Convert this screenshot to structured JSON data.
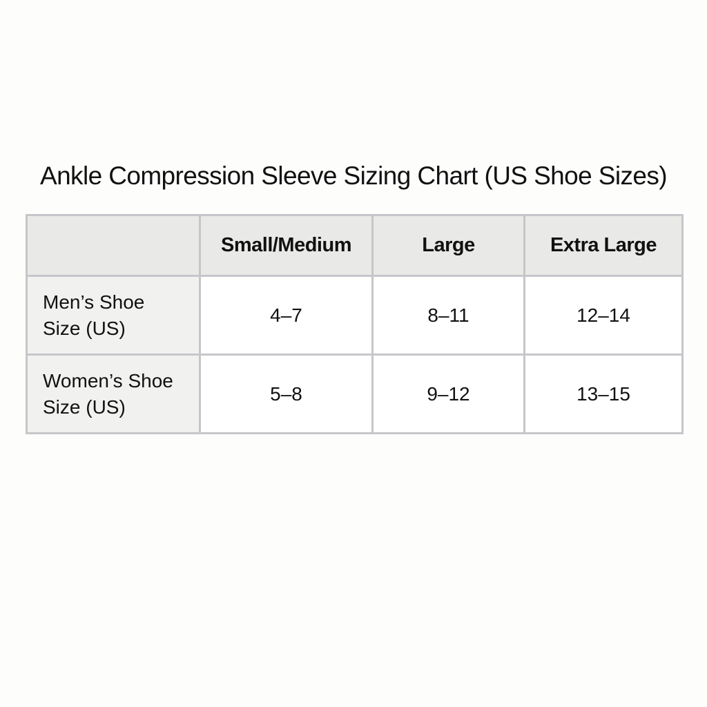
{
  "title": "Ankle Compression Sleeve Sizing Chart (US Shoe Sizes)",
  "table": {
    "headers": [
      "",
      "Small/Medium",
      "Large",
      "Extra Large"
    ],
    "rows": [
      {
        "label_line1": "Men’s Shoe",
        "label_line2": "Size (US)",
        "values": [
          "4–7",
          "8–11",
          "12–14"
        ]
      },
      {
        "label_line1": "Women’s Shoe",
        "label_line2": "Size (US)",
        "values": [
          "5–8",
          "9–12",
          "13–15"
        ]
      }
    ]
  },
  "colors": {
    "header_bg": "#e9e9e7",
    "border": "#c6c6ca",
    "label_bg": "#f1f1ef"
  }
}
